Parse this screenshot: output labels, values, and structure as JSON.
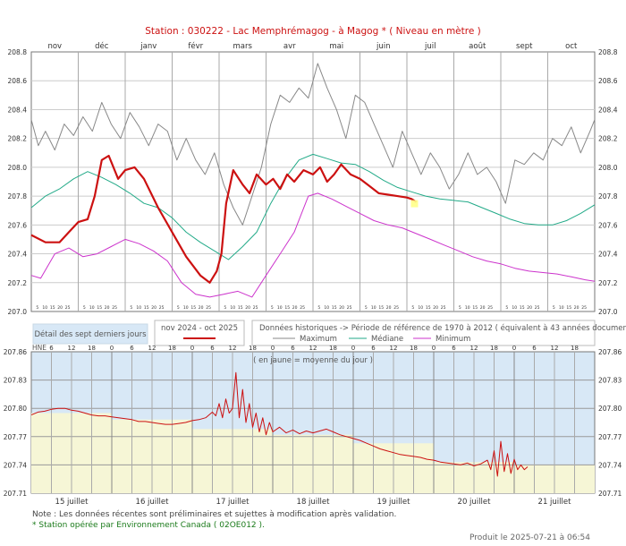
{
  "title": "Station : 030222      -   Lac Memphrémagog - à  Magog *   ( Niveau en mètre )",
  "colors": {
    "current": "#cc1111",
    "maximum": "#888888",
    "median": "#22aa88",
    "minimum": "#cc33cc",
    "recent_sky": "#d8e8f6",
    "recent_fill": "#f6f6d6",
    "recent_line": "#cc1111",
    "title": "#cc1111"
  },
  "legend": {
    "detail_label": "Détail des sept derniers jours",
    "current_label": "nov 2024 - oct 2025",
    "historic_label": "Données historiques -> Période de référence  de 1970 à 2012   ( équivalent à 43 années documentées )",
    "max_label": "Maximum",
    "median_label": "Médiane",
    "min_label": "Minimum"
  },
  "chart_data": [
    {
      "type": "line",
      "title": "Station : 030222      -   Lac Memphrémagog - à  Magog *   ( Niveau en mètre )",
      "month_labels": [
        "nov",
        "déc",
        "janv",
        "févr",
        "mars",
        "avr",
        "mai",
        "juin",
        "juil",
        "août",
        "sept",
        "oct"
      ],
      "day_tick_labels": [
        "5",
        "10",
        "15",
        "20",
        "25"
      ],
      "ylim": [
        207.0,
        208.8
      ],
      "yticks": [
        "207.0",
        "207.2",
        "207.4",
        "207.6",
        "207.8",
        "208.0",
        "208.2",
        "208.4",
        "208.6",
        "208.8"
      ],
      "x_unit": "months since 1 nov",
      "grid": true,
      "series": [
        {
          "name": "Maximum",
          "color_key": "maximum",
          "x": [
            0,
            0.15,
            0.3,
            0.5,
            0.7,
            0.9,
            1.1,
            1.3,
            1.5,
            1.7,
            1.9,
            2.1,
            2.3,
            2.5,
            2.7,
            2.9,
            3.1,
            3.3,
            3.5,
            3.7,
            3.9,
            4.1,
            4.3,
            4.5,
            4.7,
            4.9,
            5.1,
            5.3,
            5.5,
            5.7,
            5.9,
            6.1,
            6.3,
            6.5,
            6.7,
            6.9,
            7.1,
            7.3,
            7.5,
            7.7,
            7.9,
            8.1,
            8.3,
            8.5,
            8.7,
            8.9,
            9.1,
            9.3,
            9.5,
            9.7,
            9.9,
            10.1,
            10.3,
            10.5,
            10.7,
            10.9,
            11.1,
            11.3,
            11.5,
            11.7,
            11.9,
            12.0
          ],
          "y": [
            208.33,
            208.15,
            208.25,
            208.12,
            208.3,
            208.22,
            208.35,
            208.25,
            208.45,
            208.3,
            208.2,
            208.38,
            208.28,
            208.15,
            208.3,
            208.25,
            208.05,
            208.2,
            208.05,
            207.95,
            208.1,
            207.88,
            207.72,
            207.6,
            207.8,
            208.0,
            208.3,
            208.5,
            208.45,
            208.55,
            208.48,
            208.72,
            208.55,
            208.4,
            208.2,
            208.5,
            208.45,
            208.3,
            208.15,
            208.0,
            208.25,
            208.1,
            207.95,
            208.1,
            208.0,
            207.85,
            207.95,
            208.1,
            207.95,
            208.0,
            207.9,
            207.75,
            208.05,
            208.02,
            208.1,
            208.05,
            208.2,
            208.15,
            208.28,
            208.1,
            208.25,
            208.33
          ]
        },
        {
          "name": "Médiane",
          "color_key": "median",
          "x": [
            0,
            0.3,
            0.6,
            0.9,
            1.2,
            1.5,
            1.8,
            2.1,
            2.4,
            2.7,
            3.0,
            3.3,
            3.6,
            3.9,
            4.2,
            4.5,
            4.8,
            5.1,
            5.4,
            5.7,
            6.0,
            6.3,
            6.6,
            6.9,
            7.2,
            7.5,
            7.8,
            8.1,
            8.4,
            8.7,
            9.0,
            9.3,
            9.6,
            9.9,
            10.2,
            10.5,
            10.8,
            11.1,
            11.4,
            11.7,
            12.0
          ],
          "y": [
            207.72,
            207.8,
            207.85,
            207.92,
            207.97,
            207.93,
            207.88,
            207.82,
            207.75,
            207.72,
            207.65,
            207.55,
            207.48,
            207.42,
            207.36,
            207.45,
            207.55,
            207.75,
            207.92,
            208.05,
            208.09,
            208.06,
            208.03,
            208.02,
            207.97,
            207.91,
            207.86,
            207.83,
            207.8,
            207.78,
            207.77,
            207.76,
            207.72,
            207.68,
            207.64,
            207.61,
            207.6,
            207.6,
            207.63,
            207.68,
            207.74
          ]
        },
        {
          "name": "Minimum",
          "color_key": "minimum",
          "x": [
            0,
            0.2,
            0.5,
            0.8,
            1.1,
            1.4,
            1.7,
            2.0,
            2.3,
            2.6,
            2.9,
            3.2,
            3.5,
            3.8,
            4.1,
            4.4,
            4.7,
            5.0,
            5.3,
            5.6,
            5.9,
            6.1,
            6.4,
            6.7,
            7.0,
            7.3,
            7.6,
            7.9,
            8.2,
            8.5,
            8.8,
            9.1,
            9.4,
            9.7,
            10.0,
            10.3,
            10.6,
            10.9,
            11.2,
            11.5,
            11.8,
            12.0
          ],
          "y": [
            207.25,
            207.23,
            207.4,
            207.44,
            207.38,
            207.4,
            207.45,
            207.5,
            207.47,
            207.42,
            207.35,
            207.2,
            207.12,
            207.1,
            207.12,
            207.14,
            207.1,
            207.25,
            207.4,
            207.55,
            207.8,
            207.82,
            207.78,
            207.73,
            207.68,
            207.63,
            207.6,
            207.58,
            207.54,
            207.5,
            207.46,
            207.42,
            207.38,
            207.35,
            207.33,
            207.3,
            207.28,
            207.27,
            207.26,
            207.24,
            207.22,
            207.21
          ]
        },
        {
          "name": "nov 2024 - oct 2025",
          "color_key": "current",
          "x": [
            0,
            0.3,
            0.6,
            0.8,
            1.0,
            1.2,
            1.35,
            1.5,
            1.65,
            1.85,
            2.0,
            2.2,
            2.4,
            2.7,
            3.0,
            3.3,
            3.6,
            3.8,
            3.95,
            4.05,
            4.15,
            4.3,
            4.5,
            4.65,
            4.8,
            5.0,
            5.15,
            5.3,
            5.45,
            5.6,
            5.8,
            6.0,
            6.15,
            6.3,
            6.45,
            6.6,
            6.8,
            7.0,
            7.2,
            7.4,
            7.6,
            7.8,
            8.0,
            8.1,
            8.2
          ],
          "y": [
            207.53,
            207.48,
            207.48,
            207.55,
            207.62,
            207.64,
            207.8,
            208.05,
            208.08,
            207.92,
            207.98,
            208.0,
            207.92,
            207.72,
            207.55,
            207.38,
            207.25,
            207.2,
            207.28,
            207.4,
            207.75,
            207.98,
            207.88,
            207.82,
            207.95,
            207.88,
            207.92,
            207.85,
            207.95,
            207.9,
            207.98,
            207.95,
            208.0,
            207.9,
            207.95,
            208.02,
            207.95,
            207.92,
            207.87,
            207.82,
            207.81,
            207.8,
            207.79,
            207.78,
            207.76
          ]
        }
      ]
    },
    {
      "type": "line",
      "title": "( en jaune = moyenne du jour )",
      "hne_label": "HNE",
      "hour_labels": [
        "6",
        "12",
        "18",
        "0",
        "6",
        "12",
        "18",
        "0",
        "6",
        "12",
        "18",
        "0",
        "6",
        "12",
        "18",
        "0",
        "6",
        "12",
        "18",
        "0",
        "6",
        "12",
        "18",
        "0",
        "6",
        "12",
        "18"
      ],
      "day_labels": [
        "15 juillet",
        "16 juillet",
        "17 juillet",
        "18 juillet",
        "19 juillet",
        "20 juillet",
        "21 juillet"
      ],
      "ylim": [
        207.71,
        207.86
      ],
      "yticks": [
        "207.71",
        "207.74",
        "207.77",
        "207.80",
        "207.83",
        "207.86"
      ],
      "x_unit": "hours since 15 juillet 00:00",
      "grid": true,
      "daily_mean": {
        "x": [
          0,
          24,
          24,
          48,
          48,
          72,
          72,
          96,
          96,
          120,
          120,
          144,
          144,
          168
        ],
        "y": [
          207.795,
          207.795,
          207.788,
          207.788,
          207.778,
          207.778,
          207.772,
          207.772,
          207.763,
          207.763,
          207.743,
          207.743,
          207.74,
          207.74
        ]
      },
      "series": [
        {
          "name": "Niveau",
          "color_key": "recent_line",
          "x": [
            0,
            2,
            4,
            6,
            8,
            10,
            12,
            14,
            16,
            18,
            20,
            22,
            24,
            26,
            28,
            30,
            32,
            34,
            36,
            38,
            40,
            42,
            44,
            46,
            48,
            50,
            52,
            54,
            55,
            56,
            57,
            58,
            59,
            60,
            61,
            62,
            63,
            64,
            65,
            66,
            67,
            68,
            69,
            70,
            71,
            72,
            74,
            76,
            78,
            80,
            82,
            84,
            86,
            88,
            90,
            92,
            94,
            96,
            98,
            100,
            102,
            104,
            106,
            108,
            110,
            112,
            114,
            116,
            118,
            120,
            122,
            124,
            126,
            128,
            130,
            132,
            134,
            136,
            137,
            138,
            139,
            140,
            141,
            142,
            143,
            144,
            145,
            146,
            147,
            148
          ],
          "y": [
            207.793,
            207.796,
            207.797,
            207.799,
            207.8,
            207.8,
            207.798,
            207.797,
            207.795,
            207.793,
            207.792,
            207.792,
            207.791,
            207.79,
            207.789,
            207.788,
            207.786,
            207.786,
            207.785,
            207.784,
            207.783,
            207.783,
            207.784,
            207.785,
            207.787,
            207.788,
            207.79,
            207.796,
            207.792,
            207.805,
            207.79,
            207.81,
            207.795,
            207.8,
            207.838,
            207.79,
            207.82,
            207.785,
            207.805,
            207.78,
            207.795,
            207.775,
            207.79,
            207.772,
            207.785,
            207.775,
            207.78,
            207.774,
            207.777,
            207.773,
            207.776,
            207.774,
            207.776,
            207.778,
            207.775,
            207.772,
            207.77,
            207.768,
            207.766,
            207.763,
            207.76,
            207.757,
            207.755,
            207.753,
            207.751,
            207.75,
            207.749,
            207.748,
            207.746,
            207.745,
            207.743,
            207.742,
            207.741,
            207.74,
            207.742,
            207.739,
            207.741,
            207.745,
            207.735,
            207.755,
            207.728,
            207.765,
            207.733,
            207.752,
            207.731,
            207.746,
            207.735,
            207.74,
            207.735,
            207.738
          ]
        }
      ]
    }
  ],
  "footnotes": {
    "note1": "Note : Les données récentes sont préliminaires et sujettes à modification après validation.",
    "note2": "* Station opérée par Environnement Canada ( 02OE012 ).",
    "produced": "Produit le 2025-07-21 à 06:54"
  }
}
